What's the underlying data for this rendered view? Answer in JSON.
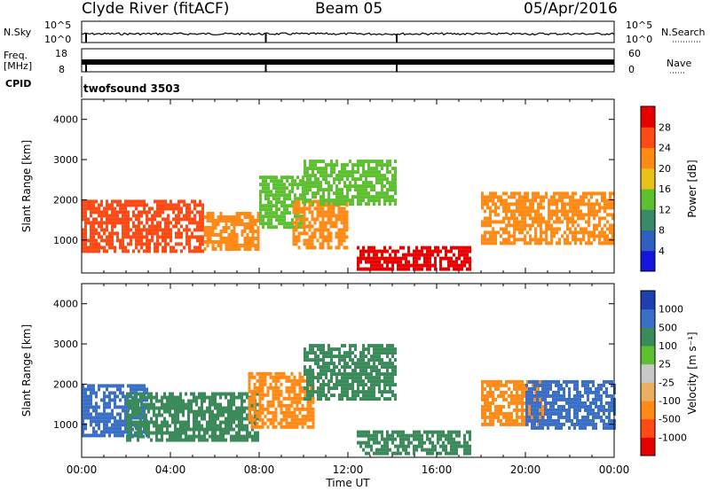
{
  "header": {
    "station": "Clyde River (fitACF)",
    "beam": "Beam 05",
    "date": "05/Apr/2016"
  },
  "sidebar_labels": {
    "nsky": "N.Sky",
    "freq": "Freq.",
    "freq_unit": "[MHz]",
    "cpid": "CPID",
    "nsearch": "N.Search",
    "nave": "Nave"
  },
  "panels": {
    "nsky_ticks": [
      "10^5",
      "10^0"
    ],
    "nsearch_ticks": [
      "10^5",
      "10^0"
    ],
    "freq_ticks": [
      "18",
      "8"
    ],
    "nave_ticks": [
      "60",
      "0"
    ],
    "cpid_text": "twofsound 3503"
  },
  "chart_data": [
    {
      "type": "heatmap",
      "name": "power",
      "xlabel": "Time UT",
      "ylabel": "Slant Range [km]",
      "xlim": [
        0,
        24
      ],
      "ylim": [
        180,
        4500
      ],
      "x_ticks": [
        "00:00",
        "04:00",
        "08:00",
        "12:00",
        "16:00",
        "20:00",
        "00:00"
      ],
      "y_ticks": [
        "1000",
        "2000",
        "3000",
        "4000"
      ],
      "colorbar": {
        "label": "Power [dB]",
        "ticks": [
          "4",
          "8",
          "12",
          "16",
          "20",
          "24",
          "28"
        ],
        "colors": [
          "#1515e0",
          "#2f5fbf",
          "#3a8a6a",
          "#5cc030",
          "#e8c21a",
          "#ff8a15",
          "#ff4a15",
          "#e80000"
        ]
      },
      "regions": [
        {
          "t0": 0.0,
          "t1": 5.5,
          "r0": 700,
          "r1": 2000,
          "value": 24
        },
        {
          "t0": 5.5,
          "t1": 8.0,
          "r0": 800,
          "r1": 1700,
          "value": 22
        },
        {
          "t0": 8.0,
          "t1": 10.0,
          "r0": 1300,
          "r1": 2600,
          "value": 12
        },
        {
          "t0": 9.5,
          "t1": 12.0,
          "r0": 800,
          "r1": 2000,
          "value": 20
        },
        {
          "t0": 10.0,
          "t1": 14.2,
          "r0": 1900,
          "r1": 3000,
          "value": 12
        },
        {
          "t0": 12.4,
          "t1": 17.5,
          "r0": 250,
          "r1": 850,
          "value": 28
        },
        {
          "t0": 18.0,
          "t1": 24.0,
          "r0": 900,
          "r1": 2200,
          "value": 20
        }
      ]
    },
    {
      "type": "heatmap",
      "name": "velocity",
      "xlabel": "Time UT",
      "ylabel": "Slant Range [km]",
      "xlim": [
        0,
        24
      ],
      "ylim": [
        180,
        4500
      ],
      "x_ticks": [
        "00:00",
        "04:00",
        "08:00",
        "12:00",
        "16:00",
        "20:00",
        "00:00"
      ],
      "y_ticks": [
        "1000",
        "2000",
        "3000",
        "4000"
      ],
      "colorbar": {
        "label": "Velocity [m s⁻¹]",
        "ticks": [
          "1000",
          "500",
          "100",
          "25",
          "-25",
          "-100",
          "-500",
          "-1000"
        ],
        "colors": [
          "#1e3fb0",
          "#3a6fc8",
          "#3a8a5a",
          "#5cc030",
          "#c8c8c8",
          "#e8b060",
          "#ff8a15",
          "#ff4a15",
          "#e80000"
        ]
      },
      "regions": [
        {
          "t0": 0.0,
          "t1": 3.0,
          "r0": 700,
          "r1": 2000,
          "value": 700
        },
        {
          "t0": 2.0,
          "t1": 8.0,
          "r0": 600,
          "r1": 1800,
          "value": 150
        },
        {
          "t0": 7.5,
          "t1": 10.5,
          "r0": 900,
          "r1": 2300,
          "value": -300
        },
        {
          "t0": 10.0,
          "t1": 14.2,
          "r0": 1600,
          "r1": 3000,
          "value": 200
        },
        {
          "t0": 12.4,
          "t1": 17.5,
          "r0": 250,
          "r1": 850,
          "value": 150
        },
        {
          "t0": 18.0,
          "t1": 21.0,
          "r0": 1000,
          "r1": 2100,
          "value": -300
        },
        {
          "t0": 20.0,
          "t1": 24.0,
          "r0": 900,
          "r1": 2100,
          "value": 700
        }
      ]
    }
  ]
}
